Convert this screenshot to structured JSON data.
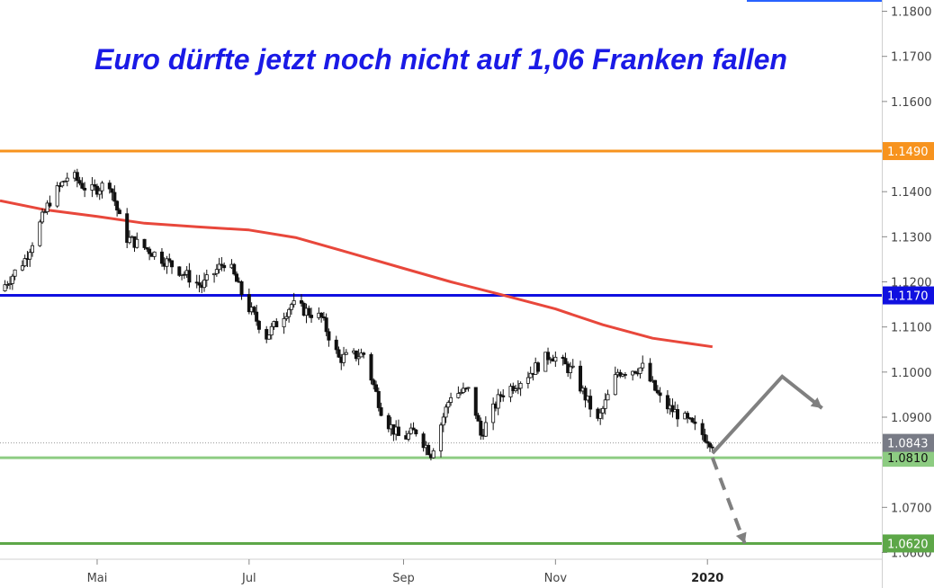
{
  "chart_data": {
    "type": "candlestick",
    "title": "Euro dürfte jetzt noch nicht auf 1,06 Franken fallen",
    "ylim": [
      1.0585,
      1.1825
    ],
    "y_ticks": [
      "1.1800",
      "1.1700",
      "1.1600",
      "1.1400",
      "1.1300",
      "1.1200",
      "1.1100",
      "1.1000",
      "1.0900",
      "1.0700",
      "1.0600"
    ],
    "x_ticks": [
      {
        "label": "Mai",
        "date": "2019-05-01"
      },
      {
        "label": "Jul",
        "date": "2019-07-01"
      },
      {
        "label": "Sep",
        "date": "2019-09-01"
      },
      {
        "label": "Nov",
        "date": "2019-11-01"
      },
      {
        "label": "2020",
        "date": "2020-01-01",
        "bold": true
      }
    ],
    "xlim": [
      "2019-03-23",
      "2020-03-11"
    ],
    "horizontal_lines": [
      {
        "level": 1.149,
        "label": "1.1490",
        "color": "#f7931e",
        "tag_color": "#f7931e",
        "tag_text_color": "#ffffff"
      },
      {
        "level": 1.117,
        "label": "1.1170",
        "color": "#1010e0",
        "tag_color": "#1010e0",
        "tag_text_color": "#ffffff"
      },
      {
        "level": 1.081,
        "label": "1.0810",
        "color": "#8dcc82",
        "tag_color": "#8dcc82",
        "tag_text_color": "#111111"
      },
      {
        "level": 1.062,
        "label": "1.0620",
        "color": "#5da748",
        "tag_color": "#5da748",
        "tag_text_color": "#ffffff"
      }
    ],
    "last_price": {
      "level": 1.0843,
      "label": "1.0843",
      "tag_color": "#787b86",
      "tag_text_color": "#ffffff"
    },
    "moving_average": {
      "color": "#e8473b",
      "points": [
        [
          "2019-03-23",
          1.138
        ],
        [
          "2019-04-10",
          1.136
        ],
        [
          "2019-05-01",
          1.1345
        ],
        [
          "2019-05-20",
          1.133
        ],
        [
          "2019-06-10",
          1.1322
        ],
        [
          "2019-07-01",
          1.1315
        ],
        [
          "2019-07-20",
          1.1298
        ],
        [
          "2019-08-10",
          1.1265
        ],
        [
          "2019-09-01",
          1.123
        ],
        [
          "2019-09-20",
          1.12
        ],
        [
          "2019-10-10",
          1.1172
        ],
        [
          "2019-11-01",
          1.114
        ],
        [
          "2019-11-20",
          1.1105
        ],
        [
          "2019-12-10",
          1.1075
        ],
        [
          "2020-01-03",
          1.1056
        ]
      ]
    },
    "price_path": {
      "color": "#111111",
      "points": [
        [
          "2019-03-23",
          1.118
        ],
        [
          "2019-04-02",
          1.125
        ],
        [
          "2019-04-12",
          1.138
        ],
        [
          "2019-04-20",
          1.144
        ],
        [
          "2019-04-28",
          1.14
        ],
        [
          "2019-05-06",
          1.142
        ],
        [
          "2019-05-12",
          1.13
        ],
        [
          "2019-05-22",
          1.127
        ],
        [
          "2019-06-02",
          1.123
        ],
        [
          "2019-06-12",
          1.119
        ],
        [
          "2019-06-22",
          1.125
        ],
        [
          "2019-06-30",
          1.115
        ],
        [
          "2019-07-08",
          1.108
        ],
        [
          "2019-07-18",
          1.115
        ],
        [
          "2019-07-30",
          1.112
        ],
        [
          "2019-08-06",
          1.103
        ],
        [
          "2019-08-16",
          1.104
        ],
        [
          "2019-08-24",
          1.09
        ],
        [
          "2019-08-31",
          1.085
        ],
        [
          "2019-09-06",
          1.087
        ],
        [
          "2019-09-12",
          1.082
        ],
        [
          "2019-09-20",
          1.095
        ],
        [
          "2019-09-28",
          1.096
        ],
        [
          "2019-10-02",
          1.086
        ],
        [
          "2019-10-10",
          1.095
        ],
        [
          "2019-10-20",
          1.099
        ],
        [
          "2019-10-30",
          1.104
        ],
        [
          "2019-11-08",
          1.1
        ],
        [
          "2019-11-18",
          1.089
        ],
        [
          "2019-11-26",
          1.1
        ],
        [
          "2019-12-06",
          1.101
        ],
        [
          "2019-12-14",
          1.093
        ],
        [
          "2019-12-22",
          1.09
        ],
        [
          "2020-01-03",
          1.0843
        ]
      ]
    },
    "projection_arrows": [
      {
        "style": "solid",
        "color": "#808080",
        "points": [
          [
            "2020-01-03",
            1.082
          ],
          [
            "2020-01-31",
            1.099
          ],
          [
            "2020-02-16",
            1.092
          ]
        ]
      },
      {
        "style": "dashed",
        "color": "#808080",
        "points": [
          [
            "2020-01-03",
            1.081
          ],
          [
            "2020-01-16",
            1.062
          ]
        ]
      }
    ],
    "grid": false,
    "legend": "none"
  }
}
